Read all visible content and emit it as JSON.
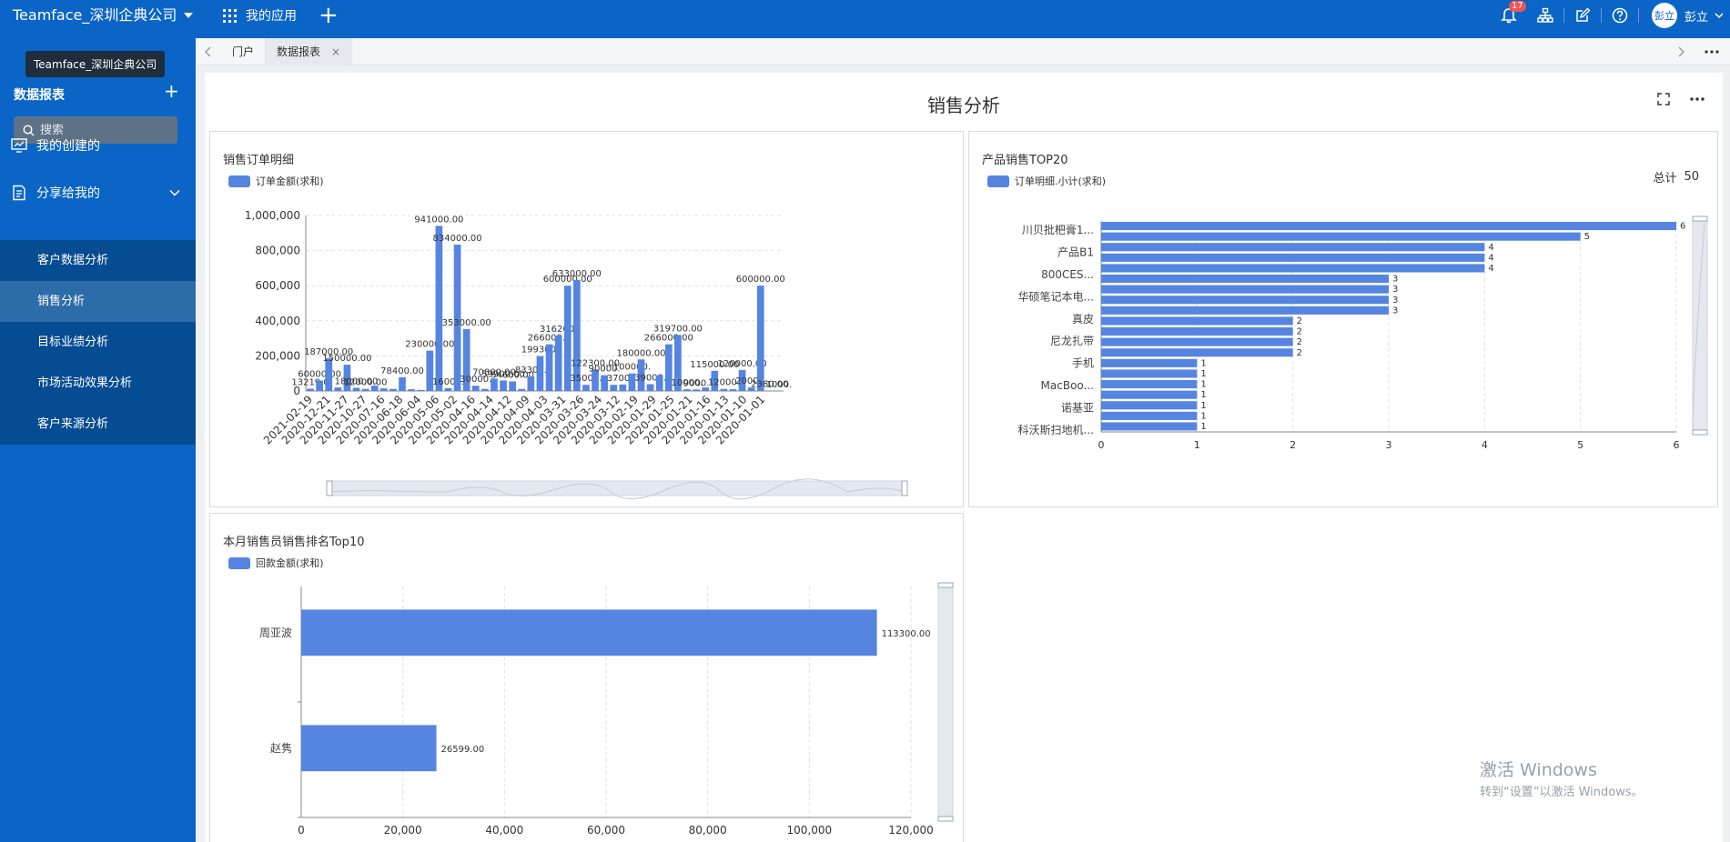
{
  "topbar": {
    "company": "Teamface_深圳企典公司",
    "apps_label": "我的应用",
    "notification_count": "17",
    "user_avatar": "彭立",
    "user_name": "彭立"
  },
  "sidebar": {
    "tooltip": "Teamface_深圳企典公司",
    "title": "数据报表",
    "search_placeholder": "搜索",
    "menu_created": "我的创建的",
    "menu_shared": "分享给我的",
    "sub_items": [
      {
        "label": "客户数据分析"
      },
      {
        "label": "销售分析"
      },
      {
        "label": "目标业绩分析"
      },
      {
        "label": "市场活动效果分析"
      },
      {
        "label": "客户来源分析"
      }
    ]
  },
  "tabs": [
    {
      "label": "门户"
    },
    {
      "label": "数据报表"
    }
  ],
  "page_title": "销售分析",
  "watermark": {
    "line1": "激活 Windows",
    "line2": "转到“设置”以激活 Windows。"
  },
  "chart_data": [
    {
      "type": "bar",
      "title": "销售订单明细",
      "legend": [
        "订单金额(求和)"
      ],
      "color": "#5585e1",
      "ylim": [
        0,
        1000000
      ],
      "y_ticks": [
        "0",
        "200,000",
        "400,000",
        "600,000",
        "800,000",
        "1,000,000"
      ],
      "categories": [
        "2021-02-19",
        "2020-12-21",
        "2020-11-27",
        "2020-10-27",
        "2020-07-16",
        "2020-06-18",
        "2020-06-04",
        "2020-05-06",
        "2020-05-02",
        "2020-04-16",
        "2020-04-14",
        "2020-04-12",
        "2020-04-09",
        "2020-04-03",
        "2020-03-31",
        "2020-03-26",
        "2020-03-24",
        "2020-03-12",
        "2020-02-19",
        "2020-01-29",
        "2020-01-25",
        "2020-01-21",
        "2020-01-16",
        "2020-01-13",
        "2020-01-10",
        "2020-01-01"
      ],
      "values": [
        13219,
        60000,
        187000,
        20000,
        150000,
        18000,
        12000,
        30000,
        15000,
        12000,
        78400,
        10000,
        6000,
        230000,
        941000,
        16000,
        834000,
        353000,
        30000,
        12000,
        70800,
        59900,
        54600,
        12000,
        83300,
        199300,
        266000,
        316200,
        600000,
        633000,
        35000,
        122300,
        90000,
        35000,
        37000,
        100000,
        180000,
        39000,
        90000,
        266000,
        319700,
        10000,
        9000,
        20000,
        115000,
        12000,
        10000,
        120000,
        20000,
        600000,
        2360,
        1000
      ],
      "labels": [
        "13219.0",
        "60000.00",
        "187000.00",
        "",
        "150000.00",
        "18000.00",
        "12000.00",
        "",
        "",
        "",
        "78400.00",
        "",
        "",
        "230000.00",
        "941000.00",
        "16000.",
        "834000.00",
        "353000.00",
        "30000.",
        "",
        "70800.00",
        "59900.00",
        "54600.00",
        "",
        "83300.",
        "199300.",
        "266000.0",
        "316200.",
        "600000.00",
        "633000.00",
        "35000.",
        "122300.00",
        "90000.",
        "",
        "37000.",
        "100000.",
        "180000.00",
        "39000.",
        "",
        "266000.00",
        "319700.00",
        "10000.",
        "9000.",
        "",
        "115000.00",
        "12000.",
        "",
        "120000.00",
        "20000.",
        "600000.00",
        "2360.00",
        "1000."
      ]
    },
    {
      "type": "bar",
      "orientation": "horizontal",
      "title": "产品销售TOP20",
      "legend": [
        "订单明细.小计(求和)"
      ],
      "total_label": "总计",
      "total_value": "50",
      "xlim": [
        0,
        6
      ],
      "x_ticks": [
        "0",
        "1",
        "2",
        "3",
        "4",
        "5",
        "6"
      ],
      "y_labels": [
        "川贝批杷膏1...",
        "",
        "产品B1",
        "",
        "800CES...",
        "",
        "华硕笔记本电...",
        "",
        "真皮",
        "",
        "尼龙扎带",
        "",
        "手机",
        "",
        "MacBoo...",
        "",
        "诺基亚",
        "",
        "科沃斯扫地机..."
      ],
      "values": [
        6,
        5,
        4,
        4,
        4,
        3,
        3,
        3,
        3,
        2,
        2,
        2,
        2,
        1,
        1,
        1,
        1,
        1,
        1,
        1
      ]
    },
    {
      "type": "bar",
      "orientation": "horizontal",
      "title": "本月销售员销售排名Top10",
      "legend": [
        "回款金额(求和)"
      ],
      "xlim": [
        0,
        120000
      ],
      "x_ticks": [
        "0",
        "20,000",
        "40,000",
        "60,000",
        "80,000",
        "100,000",
        "120,000"
      ],
      "categories": [
        "周亚波",
        "赵隽"
      ],
      "values": [
        113300,
        26599
      ],
      "labels": [
        "113300.00",
        "26599.00"
      ]
    }
  ]
}
